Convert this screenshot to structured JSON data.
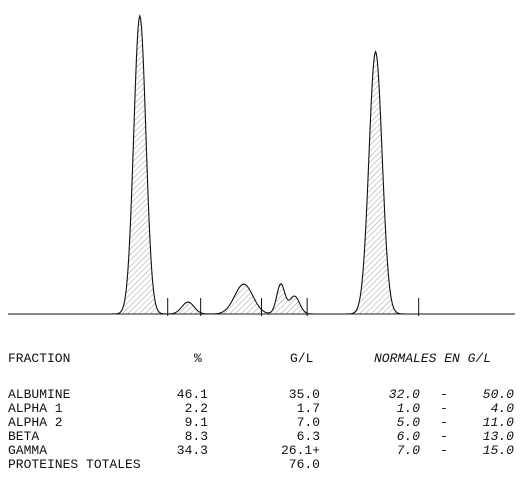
{
  "chart_data": {
    "type": "area",
    "title": "",
    "xlabel": "",
    "ylabel": "",
    "grid": false,
    "legend": "none",
    "peaks": [
      {
        "fraction": "ALBUMINE",
        "position": 0.26,
        "relative_height": 1.0
      },
      {
        "fraction": "ALPHA 1",
        "position": 0.355,
        "relative_height": 0.04
      },
      {
        "fraction": "ALPHA 2",
        "position": 0.465,
        "relative_height": 0.1
      },
      {
        "fraction": "BETA",
        "position": 0.538,
        "relative_height": 0.1
      },
      {
        "fraction": "BETA",
        "position": 0.565,
        "relative_height": 0.06
      },
      {
        "fraction": "GAMMA",
        "position": 0.725,
        "relative_height": 0.88
      }
    ],
    "fraction_boundaries": [
      0.315,
      0.38,
      0.5,
      0.59,
      0.81
    ]
  },
  "table": {
    "headers": {
      "fraction": "FRACTION",
      "percent": "%",
      "gl": "G/L",
      "normales": "NORMALES EN G/L"
    },
    "rows": [
      {
        "name": "ALBUMINE",
        "percent": "46.1",
        "gl": "35.0",
        "low": "32.0",
        "dash": "-",
        "high": "50.0"
      },
      {
        "name": "ALPHA 1",
        "percent": "2.2",
        "gl": "1.7",
        "low": "1.0",
        "dash": "-",
        "high": "4.0"
      },
      {
        "name": "ALPHA 2",
        "percent": "9.1",
        "gl": "7.0",
        "low": "5.0",
        "dash": "-",
        "high": "11.0"
      },
      {
        "name": "BETA",
        "percent": "8.3",
        "gl": "6.3",
        "low": "6.0",
        "dash": "-",
        "high": "13.0"
      },
      {
        "name": "GAMMA",
        "percent": "34.3",
        "gl": "26.1+",
        "low": "7.0",
        "dash": "-",
        "high": "15.0"
      }
    ],
    "total": {
      "label": "PROTEINES TOTALES",
      "value": "76.0"
    }
  }
}
